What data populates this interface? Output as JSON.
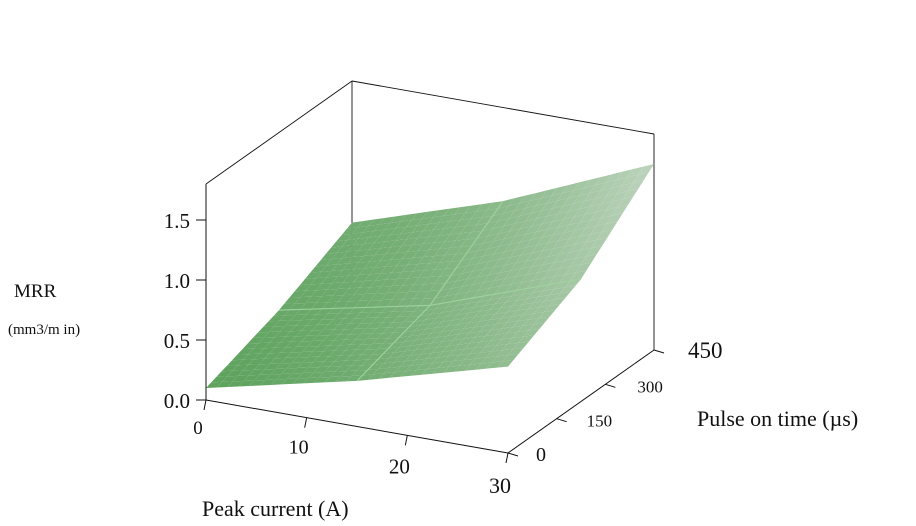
{
  "chart_data": {
    "type": "surface",
    "title": "",
    "zlabel_line1": "MRR",
    "zlabel_line2": "(mm3/m in)",
    "xlabel": "Peak current (A)",
    "ylabel": "Pulse on time (µs)",
    "x_ticks": [
      "0",
      "10",
      "20",
      "30"
    ],
    "y_ticks": [
      "0",
      "150",
      "300",
      "450"
    ],
    "z_ticks": [
      "0.0",
      "0.5",
      "1.0",
      "1.5"
    ],
    "xlim": [
      0,
      30
    ],
    "ylim": [
      0,
      450
    ],
    "zlim": [
      0,
      1.8
    ],
    "x": [
      0,
      15,
      30
    ],
    "y": [
      0,
      225,
      450
    ],
    "z": [
      [
        0.1,
        0.38,
        0.72
      ],
      [
        0.32,
        0.58,
        1.02
      ],
      [
        0.62,
        1.02,
        1.55
      ]
    ],
    "surface_color": "#4e9f4e",
    "grid": false
  }
}
